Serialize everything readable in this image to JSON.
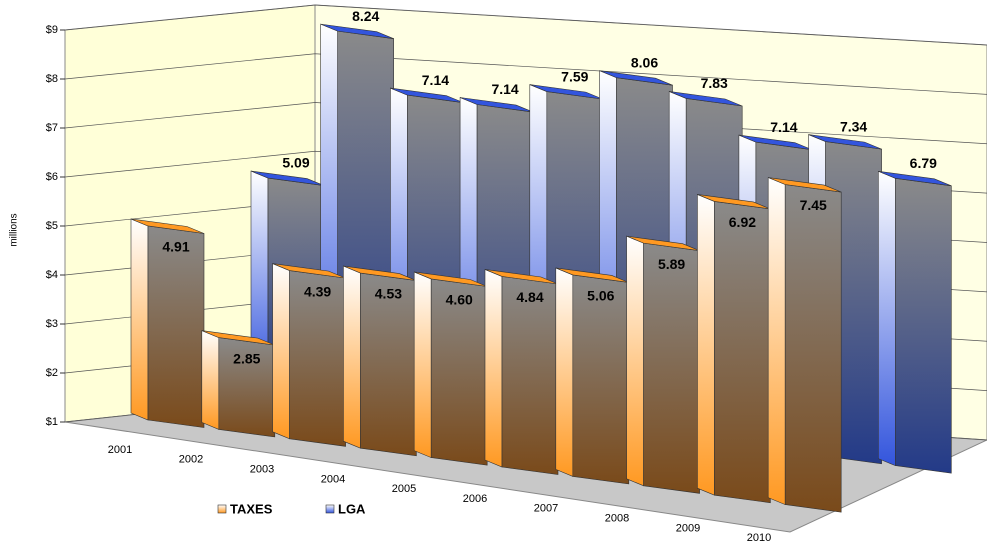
{
  "chart_data": {
    "type": "bar3d",
    "y_axis_label": "millions",
    "categories": [
      "2001",
      "2002",
      "2003",
      "2004",
      "2005",
      "2006",
      "2007",
      "2008",
      "2009",
      "2010"
    ],
    "series": [
      {
        "name": "TAXES",
        "color": "#ff9922",
        "values": [
          4.91,
          2.85,
          4.39,
          4.53,
          4.6,
          4.84,
          5.06,
          5.89,
          6.92,
          7.45
        ],
        "value_labels": [
          "4.91",
          "2.85",
          "4.39",
          "4.53",
          "4.60",
          "4.84",
          "5.06",
          "5.89",
          "6.92",
          "7.45"
        ]
      },
      {
        "name": "LGA",
        "color": "#3355dd",
        "values": [
          5.09,
          8.24,
          7.14,
          7.14,
          7.59,
          8.06,
          7.83,
          7.14,
          7.34,
          6.79
        ],
        "value_labels": [
          "5.09",
          "8.24",
          "7.14",
          "7.14",
          "7.59",
          "8.06",
          "7.83",
          "7.14",
          "7.34",
          "6.79"
        ]
      }
    ],
    "ylim": [
      1,
      9
    ],
    "yticks": [
      {
        "value": 1,
        "label": "$1"
      },
      {
        "value": 2,
        "label": "$2"
      },
      {
        "value": 3,
        "label": "$3"
      },
      {
        "value": 4,
        "label": "$4"
      },
      {
        "value": 5,
        "label": "$5"
      },
      {
        "value": 6,
        "label": "$6"
      },
      {
        "value": 7,
        "label": "$7"
      },
      {
        "value": 8,
        "label": "$8"
      },
      {
        "value": 9,
        "label": "$9"
      }
    ],
    "grid": true
  }
}
